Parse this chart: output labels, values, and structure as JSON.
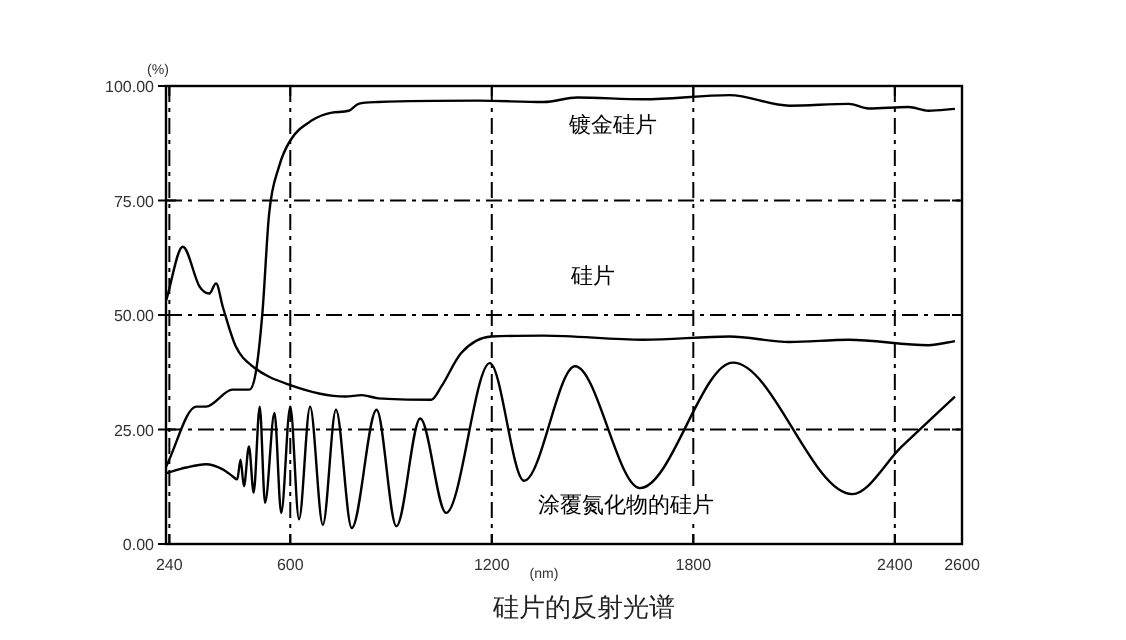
{
  "chart_data": {
    "type": "line",
    "title": "硅片的反射光谱",
    "xlabel": "(nm)",
    "ylabel": "(%)",
    "xlim": [
      230,
      2600
    ],
    "xticks": [
      240,
      600,
      1200,
      1800,
      2400,
      2600
    ],
    "ylim": [
      0,
      100
    ],
    "yticks": [
      {
        "value": 0,
        "label": "0.00"
      },
      {
        "value": 25,
        "label": "25.00"
      },
      {
        "value": 50,
        "label": "50.00"
      },
      {
        "value": 75,
        "label": "75.00"
      },
      {
        "value": 100,
        "label": "100.00"
      }
    ],
    "grid": true,
    "line_style": "solid",
    "series": [
      {
        "name": "镀金硅片",
        "color": "#000000",
        "x": [
          231,
          320,
          349,
          428,
          478,
          497,
          517,
          537,
          566,
          600,
          665,
          724,
          774,
          803,
          862,
          1158,
          1355,
          1454,
          1651,
          1908,
          2086,
          2263,
          2322,
          2441,
          2500,
          2579
        ],
        "values": [
          17,
          30,
          30,
          33.7,
          33.7,
          37.3,
          50.4,
          72.1,
          82.3,
          88.1,
          92.5,
          94.2,
          94.6,
          96.1,
          96.5,
          96.8,
          96.5,
          97.5,
          97.1,
          98,
          95.7,
          96.1,
          95.1,
          95.4,
          94.6,
          95
        ]
      },
      {
        "name": "硅片",
        "color": "#000000",
        "x": [
          231,
          280,
          330,
          359,
          379,
          399,
          438,
          488,
          600,
          764,
          813,
          862,
          1020,
          1050,
          1109,
          1198,
          1355,
          1651,
          1908,
          2086,
          2263,
          2500,
          2579
        ],
        "values": [
          53.3,
          64.9,
          56.2,
          54.7,
          56.9,
          51.8,
          43.1,
          38.8,
          34.7,
          32.2,
          32.5,
          31.8,
          31.5,
          34.4,
          41.7,
          45.3,
          45.5,
          44.6,
          45.3,
          44.1,
          44.6,
          43.4,
          44.3
        ]
      },
      {
        "name": "涂覆氮化物的硅片",
        "color": "#000000",
        "x": [
          231,
          290,
          349,
          399,
          428,
          442,
          452,
          462,
          477,
          491,
          509,
          525,
          553,
          573,
          600,
          626,
          659,
          697,
          736,
          783,
          857,
          916,
          987,
          1064,
          1194,
          1296,
          1448,
          1641,
          1918,
          2273,
          2421,
          2579
        ],
        "values": [
          15.5,
          16.7,
          17.4,
          16.3,
          14.8,
          14.1,
          18.4,
          12.6,
          21.3,
          11.2,
          30,
          9,
          28.6,
          6.8,
          30,
          5.4,
          30,
          4.2,
          29.3,
          3.5,
          29.3,
          3.9,
          27.4,
          6.8,
          39.5,
          13.8,
          38.8,
          12.2,
          39.6,
          10.9,
          21.3,
          32.2
        ]
      }
    ]
  }
}
